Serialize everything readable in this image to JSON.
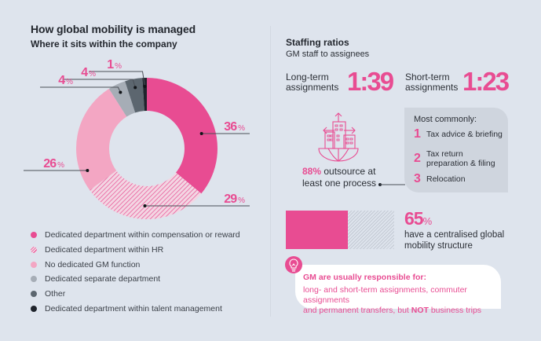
{
  "header": {
    "title": "How global mobility is managed",
    "subtitle": "Where it sits within the company"
  },
  "colors": {
    "accent": "#e84c92",
    "background": "#dee4ed",
    "light_pink": "#f3a6c3",
    "light_gray": "#a6adb6",
    "dark_gray": "#5c666f",
    "near_black": "#1f242c",
    "box_gray": "#cfd5de"
  },
  "chart_data": {
    "type": "pie",
    "subtype": "donut",
    "title": "Where it sits within the company",
    "slices": [
      {
        "label": "Dedicated department within compensation or reward",
        "value": 36,
        "display": "36",
        "color": "#e84c92",
        "pattern": "solid"
      },
      {
        "label": "Dedicated department within HR",
        "value": 29,
        "display": "29",
        "color": "#e84c92",
        "pattern": "hatched"
      },
      {
        "label": "No dedicated GM function",
        "value": 26,
        "display": "26",
        "color": "#f3a6c3",
        "pattern": "solid"
      },
      {
        "label": "Dedicated separate department",
        "value": 4,
        "display": "4",
        "color": "#a6adb6",
        "pattern": "solid"
      },
      {
        "label": "Other",
        "value": 4,
        "display": "4",
        "color": "#5c666f",
        "pattern": "solid"
      },
      {
        "label": "Dedicated department within talent management",
        "value": 1,
        "display": "1",
        "color": "#1f242c",
        "pattern": "solid"
      }
    ],
    "percent_suffix": "%",
    "legend_position": "bottom"
  },
  "staffing": {
    "title": "Staffing ratios",
    "subtitle": "GM staff to assignees",
    "long_term": {
      "label_line1": "Long-term",
      "label_line2": "assignments",
      "value": "1:39"
    },
    "short_term": {
      "label_line1": "Short-term",
      "label_line2": "assignments",
      "value": "1:23"
    }
  },
  "outsourcing": {
    "percent": "88%",
    "text_line1": " outsource at",
    "text_line2": "least one process",
    "icon": "buildings-globe-icon",
    "common": {
      "title": "Most commonly:",
      "items": [
        {
          "rank": "1",
          "line1": "Tax advice & briefing",
          "line2": ""
        },
        {
          "rank": "2",
          "line1": "Tax return",
          "line2": "preparation & filing"
        },
        {
          "rank": "3",
          "line1": "Relocation",
          "line2": ""
        }
      ]
    }
  },
  "centralised": {
    "value": 65,
    "number": "65",
    "suffix": "%",
    "line1": "have a centralised global",
    "line2": "mobility structure"
  },
  "tip": {
    "icon": "lightbulb-icon",
    "title": "GM are usually responsible for:",
    "line1": "long- and short-term assignments, commuter assignments",
    "line2_pre": "and permanent transfers, but ",
    "line2_bold": "NOT",
    "line2_post": " business trips"
  }
}
